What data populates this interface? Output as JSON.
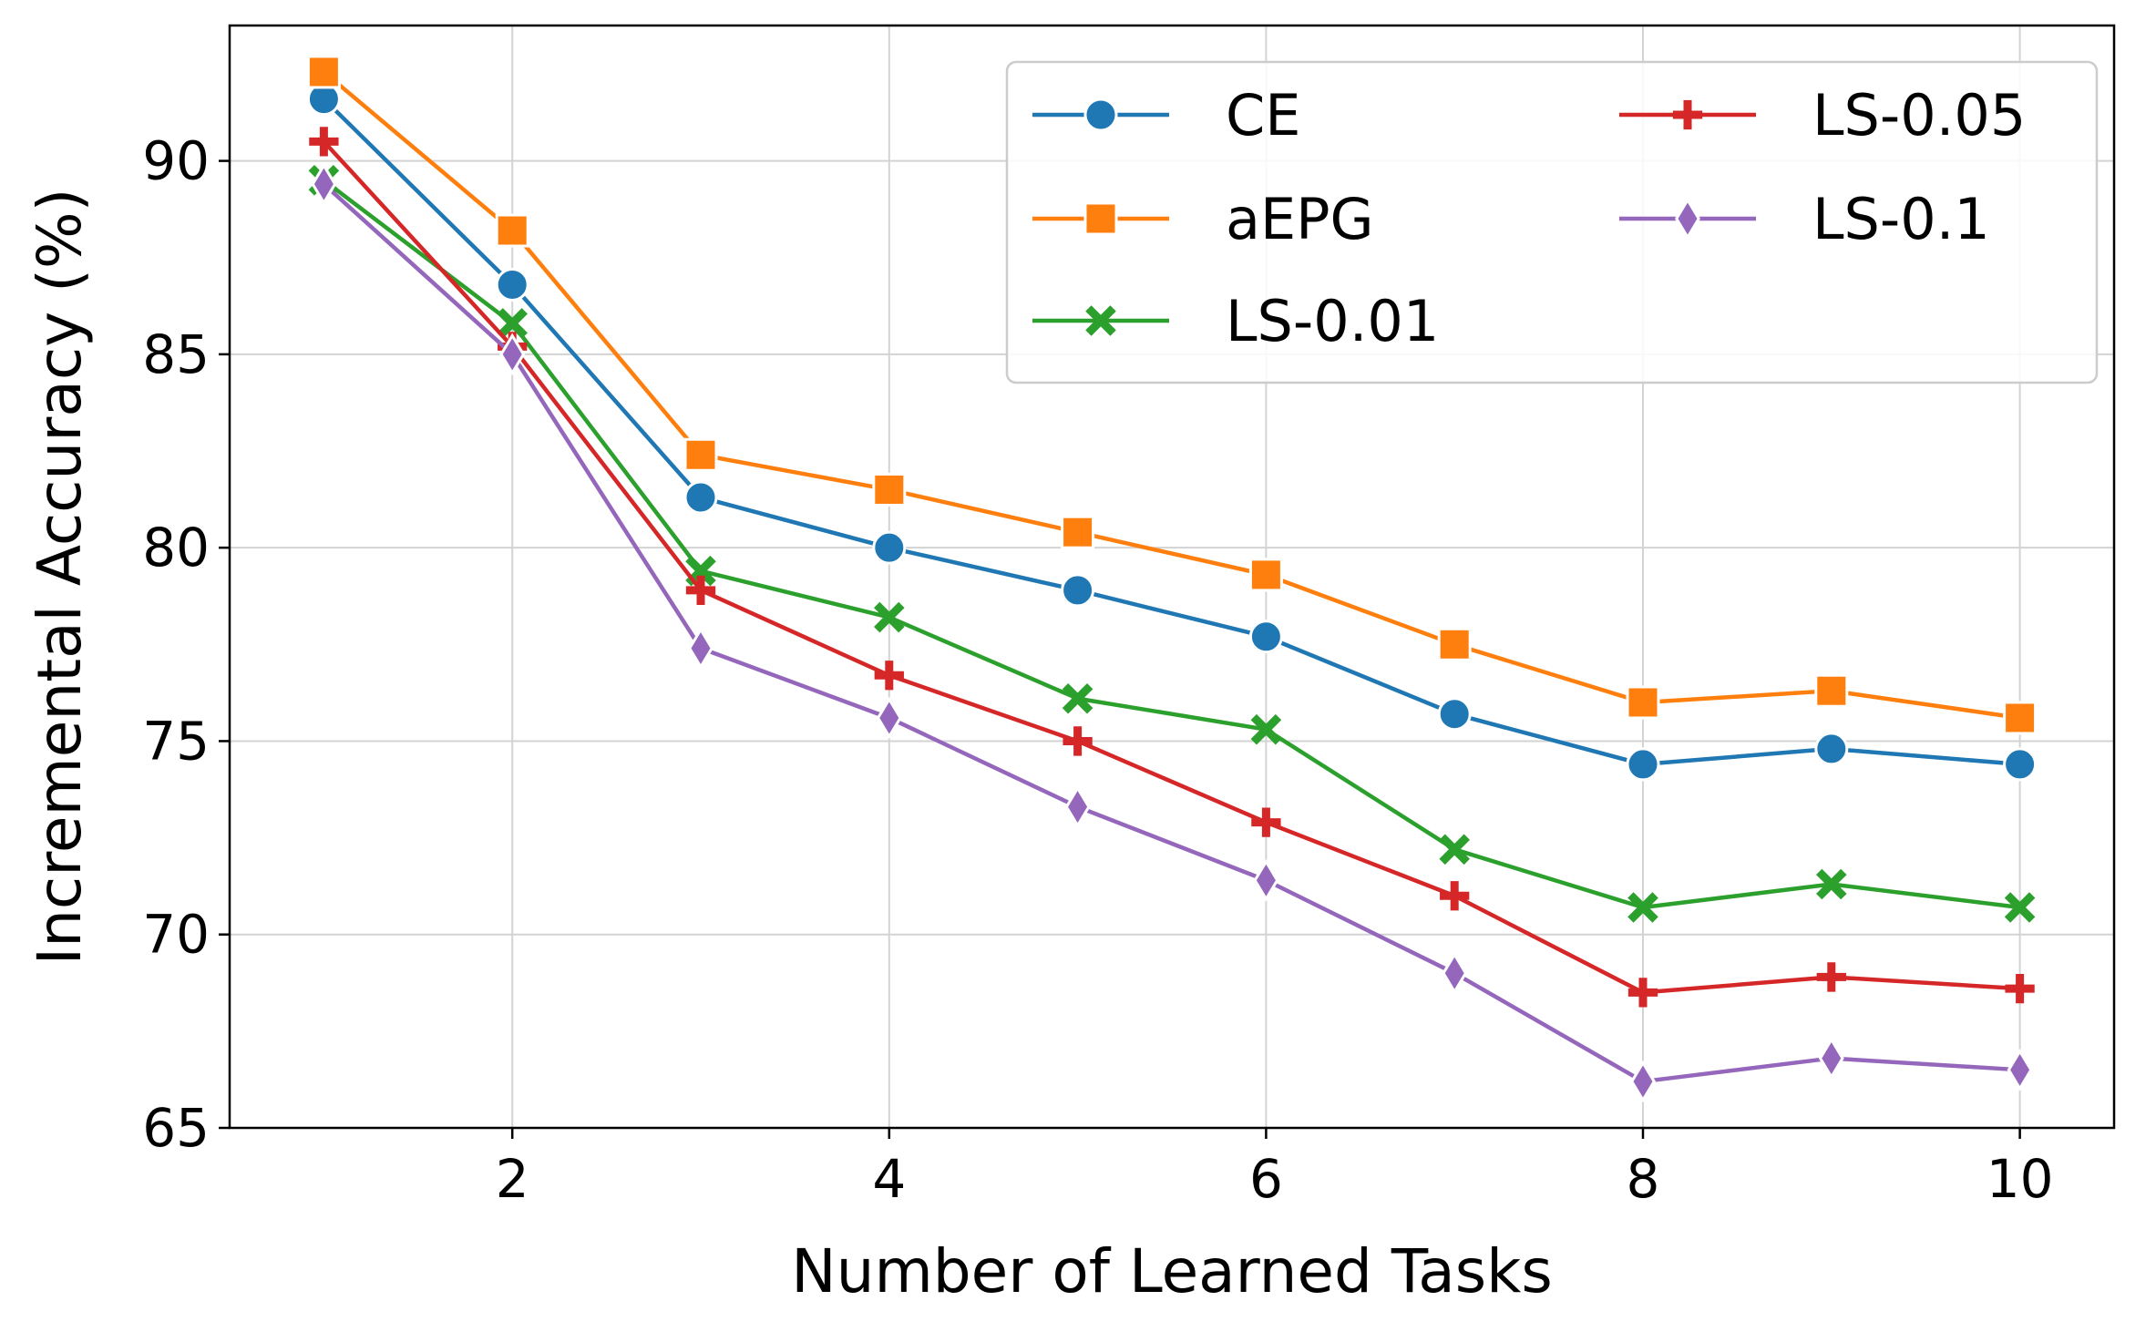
{
  "chart_data": {
    "type": "line",
    "title": "",
    "xlabel": "Number of Learned Tasks",
    "ylabel": "Incremental Accuracy (%)",
    "x": [
      1,
      2,
      3,
      4,
      5,
      6,
      7,
      8,
      9,
      10
    ],
    "xlim": [
      0.5,
      10.5
    ],
    "ylim": [
      65,
      93.5
    ],
    "xticks": [
      2,
      4,
      6,
      8,
      10
    ],
    "xtick_labels": [
      "2",
      "4",
      "6",
      "8",
      "10"
    ],
    "yticks": [
      65,
      70,
      75,
      80,
      85,
      90
    ],
    "ytick_labels": [
      "65",
      "70",
      "75",
      "80",
      "85",
      "90"
    ],
    "grid": true,
    "legend_position": "top-right",
    "legend_columns": 2,
    "series": [
      {
        "name": "CE",
        "color": "#1f77b4",
        "marker": "circle",
        "values": [
          91.6,
          86.8,
          81.3,
          80.0,
          78.9,
          77.7,
          75.7,
          74.4,
          74.8,
          74.4
        ]
      },
      {
        "name": "aEPG",
        "color": "#ff7f0e",
        "marker": "square",
        "values": [
          92.3,
          88.2,
          82.4,
          81.5,
          80.4,
          79.3,
          77.5,
          76.0,
          76.3,
          75.6
        ]
      },
      {
        "name": "LS-0.01",
        "color": "#2ca02c",
        "marker": "x",
        "values": [
          89.5,
          85.8,
          79.4,
          78.2,
          76.1,
          75.3,
          72.2,
          70.7,
          71.3,
          70.7
        ]
      },
      {
        "name": "LS-0.05",
        "color": "#d62728",
        "marker": "plus",
        "values": [
          90.5,
          85.2,
          78.9,
          76.7,
          75.0,
          72.9,
          71.0,
          68.5,
          68.9,
          68.6
        ]
      },
      {
        "name": "LS-0.1",
        "color": "#9467bd",
        "marker": "diamond",
        "values": [
          89.4,
          85.0,
          77.4,
          75.6,
          73.3,
          71.4,
          69.0,
          66.2,
          66.8,
          66.5
        ]
      }
    ]
  }
}
